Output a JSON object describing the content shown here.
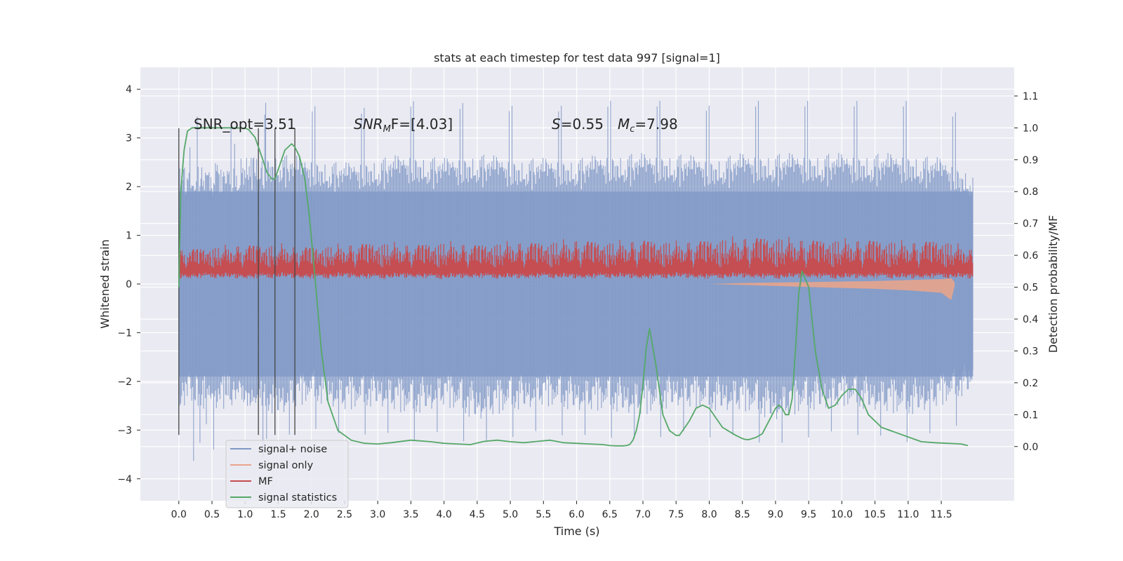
{
  "chart_data": {
    "type": "line",
    "title": "stats at each timestep for test data 997 [signal=1]",
    "xlabel": "Time (s)",
    "ylabel": "Whitened strain",
    "ylabel_right": "Detection probability/MF",
    "xlim": [
      -0.58,
      12.6
    ],
    "ylim": [
      -4.45,
      4.45
    ],
    "ylim_right": [
      -0.17,
      1.19
    ],
    "x_ticks": [
      0.0,
      0.5,
      1.0,
      1.5,
      2.0,
      2.5,
      3.0,
      3.5,
      4.0,
      4.5,
      5.0,
      5.5,
      6.0,
      6.5,
      7.0,
      7.5,
      8.0,
      8.5,
      9.0,
      9.5,
      10.0,
      10.5,
      11.0,
      11.5
    ],
    "x_tick_labels": [
      "0.0",
      "0.5",
      "1.0",
      "1.5",
      "2.0",
      "2.5",
      "3.0",
      "3.5",
      "4.0",
      "4.5",
      "5.0",
      "5.5",
      "6.0",
      "6.5",
      "7.0",
      "7.5",
      "8.0",
      "8.5",
      "9.0",
      "9.5",
      "10.0",
      "10.5",
      "11.0",
      "11.5"
    ],
    "y_ticks": [
      -4,
      -3,
      -2,
      -1,
      0,
      1,
      2,
      3,
      4
    ],
    "y_tick_labels": [
      "−4",
      "−3",
      "−2",
      "−1",
      "0",
      "1",
      "2",
      "3",
      "4"
    ],
    "y_ticks_right": [
      0.0,
      0.1,
      0.2,
      0.3,
      0.4,
      0.5,
      0.6,
      0.7,
      0.8,
      0.9,
      1.0,
      1.1
    ],
    "y_tick_labels_right": [
      "0.0",
      "0.1",
      "0.2",
      "0.3",
      "0.4",
      "0.5",
      "0.6",
      "0.7",
      "0.8",
      "0.9",
      "1.0",
      "1.1"
    ],
    "grid": true,
    "legend_position": "lower-left",
    "annotations": {
      "snr_opt": "SNR_opt=3.51",
      "snr_mf_prefix": "SNR",
      "snr_mf_sub": "M",
      "snr_mf_suffix": "F=[4.03]",
      "s_var": "S",
      "s_value": "=0.55",
      "mc_var": "M",
      "mc_sub": "c",
      "mc_value": "=7.98"
    },
    "vertical_markers": {
      "x": [
        0.0,
        1.2,
        1.45,
        1.75
      ],
      "y_range": [
        -3.1,
        3.2
      ]
    },
    "noise_band": {
      "x_range": [
        0.0,
        11.98
      ],
      "typical_range": [
        -1.9,
        1.9
      ],
      "spike_range": [
        -4.0,
        4.1
      ]
    },
    "mf_band": {
      "x_range": [
        0.0,
        11.98
      ],
      "typical_range": [
        0.1,
        0.6
      ],
      "spike_max": 1.0
    },
    "series": [
      {
        "name": "signal+ noise",
        "color": "#7f98c6",
        "x": [
          0.0,
          0.5,
          1.0,
          1.5,
          2.0,
          2.5,
          3.0,
          3.5,
          4.0,
          4.5,
          5.0,
          5.5,
          6.0,
          6.5,
          7.0,
          7.5,
          8.0,
          8.5,
          9.0,
          9.5,
          10.0,
          10.5,
          11.0,
          11.5,
          11.98
        ],
        "lower": [
          -2.5,
          -2.6,
          -2.5,
          -2.7,
          -2.4,
          -2.6,
          -2.5,
          -2.7,
          -2.5,
          -2.8,
          -2.6,
          -2.5,
          -2.6,
          -2.6,
          -2.7,
          -2.5,
          -2.6,
          -2.6,
          -2.8,
          -2.6,
          -2.5,
          -2.6,
          -2.7,
          -2.5,
          -2.2
        ],
        "upper": [
          2.4,
          2.5,
          2.6,
          2.7,
          2.6,
          2.5,
          2.6,
          2.7,
          2.6,
          2.7,
          2.6,
          2.6,
          2.6,
          2.7,
          2.7,
          2.7,
          2.6,
          2.7,
          2.7,
          2.7,
          2.7,
          2.7,
          2.7,
          2.6,
          2.3
        ]
      },
      {
        "name": "signal only",
        "color": "#e8a48c",
        "x": [
          8.0,
          8.5,
          9.0,
          9.5,
          10.0,
          10.5,
          11.0,
          11.5,
          11.65,
          11.7
        ],
        "lower": [
          0.0,
          -0.02,
          -0.04,
          -0.06,
          -0.08,
          -0.1,
          -0.13,
          -0.18,
          -0.33,
          -0.05
        ],
        "upper": [
          0.0,
          0.02,
          0.03,
          0.04,
          0.05,
          0.06,
          0.08,
          0.1,
          0.12,
          0.04
        ]
      },
      {
        "name": "MF",
        "color": "#c44e52",
        "x": [
          0.0,
          0.5,
          1.0,
          1.5,
          2.0,
          2.5,
          3.0,
          3.5,
          4.0,
          4.5,
          5.0,
          5.5,
          6.0,
          6.5,
          7.0,
          7.5,
          8.0,
          8.5,
          9.0,
          9.5,
          10.0,
          10.5,
          11.0,
          11.5,
          11.98
        ],
        "lower": [
          0.1,
          0.12,
          0.1,
          0.12,
          0.1,
          0.12,
          0.1,
          0.12,
          0.1,
          0.12,
          0.1,
          0.12,
          0.1,
          0.12,
          0.1,
          0.12,
          0.1,
          0.12,
          0.1,
          0.12,
          0.1,
          0.12,
          0.1,
          0.12,
          0.1
        ],
        "upper": [
          0.7,
          0.75,
          0.8,
          0.8,
          0.75,
          0.8,
          0.85,
          0.8,
          0.85,
          0.8,
          0.85,
          0.85,
          0.9,
          0.85,
          0.9,
          0.85,
          0.9,
          0.95,
          0.95,
          0.9,
          0.9,
          0.9,
          0.85,
          0.9,
          0.7
        ]
      },
      {
        "name": "signal statistics",
        "color": "#55a868",
        "axis": "right",
        "x": [
          0.0,
          0.03,
          0.08,
          0.13,
          0.2,
          0.3,
          0.5,
          0.8,
          1.0,
          1.05,
          1.15,
          1.25,
          1.33,
          1.4,
          1.45,
          1.5,
          1.6,
          1.7,
          1.75,
          1.82,
          1.9,
          1.97,
          2.05,
          2.15,
          2.25,
          2.4,
          2.6,
          2.8,
          3.0,
          3.2,
          3.5,
          3.8,
          4.0,
          4.2,
          4.4,
          4.6,
          4.8,
          5.0,
          5.2,
          5.4,
          5.6,
          5.8,
          6.0,
          6.2,
          6.4,
          6.5,
          6.6,
          6.7,
          6.75,
          6.8,
          6.85,
          6.9,
          6.95,
          7.0,
          7.05,
          7.1,
          7.2,
          7.3,
          7.4,
          7.5,
          7.55,
          7.6,
          7.7,
          7.8,
          7.9,
          8.0,
          8.2,
          8.4,
          8.5,
          8.55,
          8.6,
          8.65,
          8.7,
          8.8,
          8.9,
          9.0,
          9.05,
          9.1,
          9.15,
          9.2,
          9.25,
          9.3,
          9.35,
          9.4,
          9.5,
          9.55,
          9.6,
          9.7,
          9.8,
          9.9,
          10.0,
          10.1,
          10.2,
          10.3,
          10.4,
          10.6,
          10.8,
          11.0,
          11.2,
          11.4,
          11.6,
          11.8,
          11.9
        ],
        "values": [
          0.5,
          0.8,
          0.93,
          0.99,
          1.0,
          1.0,
          1.0,
          1.0,
          0.999,
          0.995,
          0.97,
          0.91,
          0.86,
          0.84,
          0.84,
          0.87,
          0.93,
          0.95,
          0.94,
          0.91,
          0.84,
          0.72,
          0.54,
          0.3,
          0.14,
          0.05,
          0.02,
          0.01,
          0.008,
          0.012,
          0.02,
          0.015,
          0.01,
          0.008,
          0.006,
          0.016,
          0.02,
          0.015,
          0.012,
          0.016,
          0.02,
          0.012,
          0.01,
          0.008,
          0.006,
          0.003,
          0.002,
          0.002,
          0.003,
          0.006,
          0.02,
          0.05,
          0.1,
          0.19,
          0.31,
          0.37,
          0.25,
          0.1,
          0.05,
          0.035,
          0.035,
          0.05,
          0.08,
          0.12,
          0.13,
          0.12,
          0.06,
          0.035,
          0.025,
          0.022,
          0.022,
          0.025,
          0.028,
          0.04,
          0.08,
          0.12,
          0.13,
          0.12,
          0.1,
          0.1,
          0.15,
          0.3,
          0.48,
          0.55,
          0.5,
          0.4,
          0.3,
          0.18,
          0.12,
          0.13,
          0.16,
          0.18,
          0.18,
          0.15,
          0.1,
          0.06,
          0.045,
          0.03,
          0.015,
          0.012,
          0.01,
          0.008,
          0.003
        ]
      }
    ]
  }
}
